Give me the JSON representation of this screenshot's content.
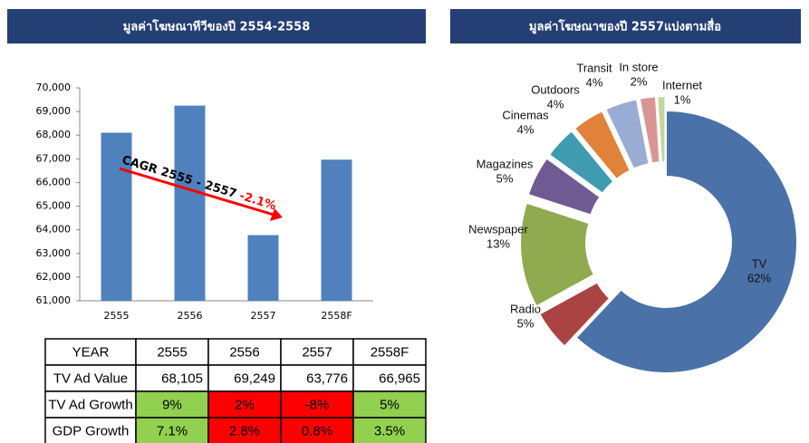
{
  "chart_data": [
    {
      "type": "bar",
      "title": "มูลค่าโฆษณาทีวีของปี 2554-2558",
      "categories": [
        "2555",
        "2556",
        "2557",
        "2558F"
      ],
      "values": [
        68105,
        69249,
        63776,
        66965
      ],
      "color": "#4f81bd",
      "ylim": [
        61000,
        70000
      ],
      "yticks": [
        {
          "value": 61000,
          "label": "61,000"
        },
        {
          "value": 62000,
          "label": "62,000"
        },
        {
          "value": 63000,
          "label": "63,000"
        },
        {
          "value": 64000,
          "label": "64,000"
        },
        {
          "value": 65000,
          "label": "65,000"
        },
        {
          "value": 66000,
          "label": "66,000"
        },
        {
          "value": 67000,
          "label": "67,000"
        },
        {
          "value": 68000,
          "label": "68,000"
        },
        {
          "value": 69000,
          "label": "69,000"
        },
        {
          "value": 70000,
          "label": "70,000"
        }
      ],
      "annotation": {
        "text": "CAGR 2555 - 2557",
        "value_text": "-2.1%",
        "color": "#ff0000"
      }
    },
    {
      "type": "donut",
      "title": "มูลค่าโฆษณาของปี 2557แบ่งตามสื่อ",
      "categories": [
        "TV",
        "Radio",
        "Newspaper",
        "Magazines",
        "Cinemas",
        "Outdoors",
        "Transit",
        "In store",
        "Internet"
      ],
      "values": [
        62,
        5,
        13,
        5,
        4,
        4,
        4,
        2,
        1
      ],
      "value_labels": [
        "62%",
        "5%",
        "13%",
        "5%",
        "4%",
        "4%",
        "4%",
        "2%",
        "1%"
      ],
      "colors": [
        "#4a72a8",
        "#a94442",
        "#8faa4f",
        "#6f5a94",
        "#3e9bb0",
        "#e0823a",
        "#99acd4",
        "#d99594",
        "#c3d69b"
      ]
    }
  ],
  "table": {
    "header": [
      "YEAR",
      "2555",
      "2556",
      "2557",
      "2558F"
    ],
    "rows": [
      [
        "TV Ad Value",
        "68,105",
        "69,249",
        "63,776",
        "66,965"
      ],
      [
        "TV Ad Growth",
        "9%",
        "2%",
        "-8%",
        "5%"
      ],
      [
        "GDP Growth",
        "7.1%",
        "2.8%",
        "0.8%",
        "3.5%"
      ]
    ],
    "cell_colors": [
      [
        "#ffffff",
        "#ffffff",
        "#ffffff",
        "#ffffff",
        "#ffffff"
      ],
      [
        "#ffffff",
        "#92d050",
        "#ff0000",
        "#ff0000",
        "#92d050"
      ],
      [
        "#ffffff",
        "#92d050",
        "#ff0000",
        "#ff0000",
        "#92d050"
      ]
    ]
  }
}
